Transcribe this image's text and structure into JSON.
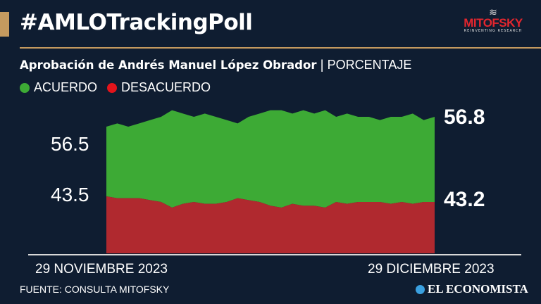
{
  "header": {
    "title": "#AMLOTrackingPoll",
    "logo_text": "MITOFSKY",
    "logo_tagline": "REINVENTING RESEARCH"
  },
  "subtitle": {
    "main": "Aprobación de Andrés Manuel López Obrador",
    "separator": "|",
    "unit": "PORCENTAJE"
  },
  "chart_data": {
    "type": "area",
    "stacked": true,
    "x_start_label": "29 NOVIEMBRE 2023",
    "x_end_label": "29 DICIEMBRE 2023",
    "series": [
      {
        "name": "ACUERDO",
        "color": "#3daa35",
        "values": [
          56.5,
          56.6,
          56.5,
          56.6,
          56.7,
          56.8,
          57.0,
          56.9,
          56.8,
          56.9,
          56.8,
          56.7,
          56.6,
          56.8,
          56.9,
          57.0,
          57.0,
          56.9,
          57.0,
          56.9,
          57.0,
          56.8,
          56.9,
          56.8,
          56.8,
          56.7,
          56.8,
          56.8,
          56.9,
          56.7,
          56.8
        ]
      },
      {
        "name": "DESACUERDO",
        "color": "#b0292f",
        "values": [
          43.5,
          43.4,
          43.4,
          43.4,
          43.3,
          43.2,
          42.9,
          43.1,
          43.2,
          43.1,
          43.1,
          43.2,
          43.4,
          43.3,
          43.2,
          43.0,
          42.9,
          43.1,
          43.0,
          43.0,
          42.9,
          43.2,
          43.1,
          43.2,
          43.2,
          43.2,
          43.1,
          43.2,
          43.1,
          43.2,
          43.2
        ]
      }
    ],
    "start_labels": {
      "acuerdo": "56.5",
      "desacuerdo": "43.5"
    },
    "end_labels": {
      "acuerdo": "56.8",
      "desacuerdo": "43.2"
    },
    "legend_position": "top-left",
    "grid": false
  },
  "legend": {
    "acuerdo": "ACUERDO",
    "desacuerdo": "DESACUERDO",
    "acuerdo_color": "#3daa35",
    "desacuerdo_color": "#e3141b"
  },
  "footer": {
    "source": "FUENTE: CONSULTA MITOFSKY",
    "publisher": "EL ECONOMISTA"
  }
}
